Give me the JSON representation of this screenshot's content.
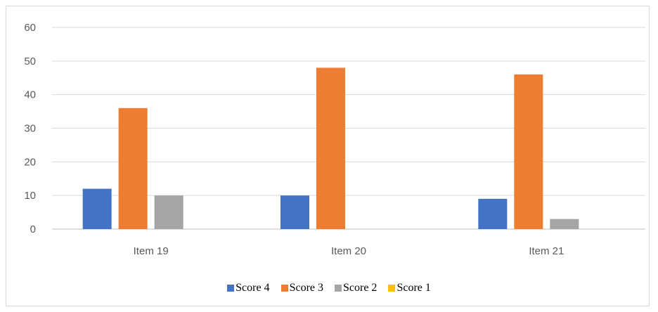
{
  "chart_data": {
    "type": "bar",
    "categories": [
      "Item 19",
      "Item 20",
      "Item 21"
    ],
    "series": [
      {
        "name": "Score 4",
        "values": [
          12,
          10,
          9
        ],
        "color": "#4472c4"
      },
      {
        "name": "Score 3",
        "values": [
          36,
          48,
          46
        ],
        "color": "#ed7d31"
      },
      {
        "name": "Score 2",
        "values": [
          10,
          0,
          3
        ],
        "color": "#a5a5a5"
      },
      {
        "name": "Score 1",
        "values": [
          0,
          0,
          0
        ],
        "color": "#ffc000"
      }
    ],
    "yticks": [
      "0",
      "10",
      "20",
      "30",
      "40",
      "50",
      "60"
    ],
    "ylim": [
      0,
      60
    ],
    "grid": true,
    "legend_position": "bottom"
  }
}
